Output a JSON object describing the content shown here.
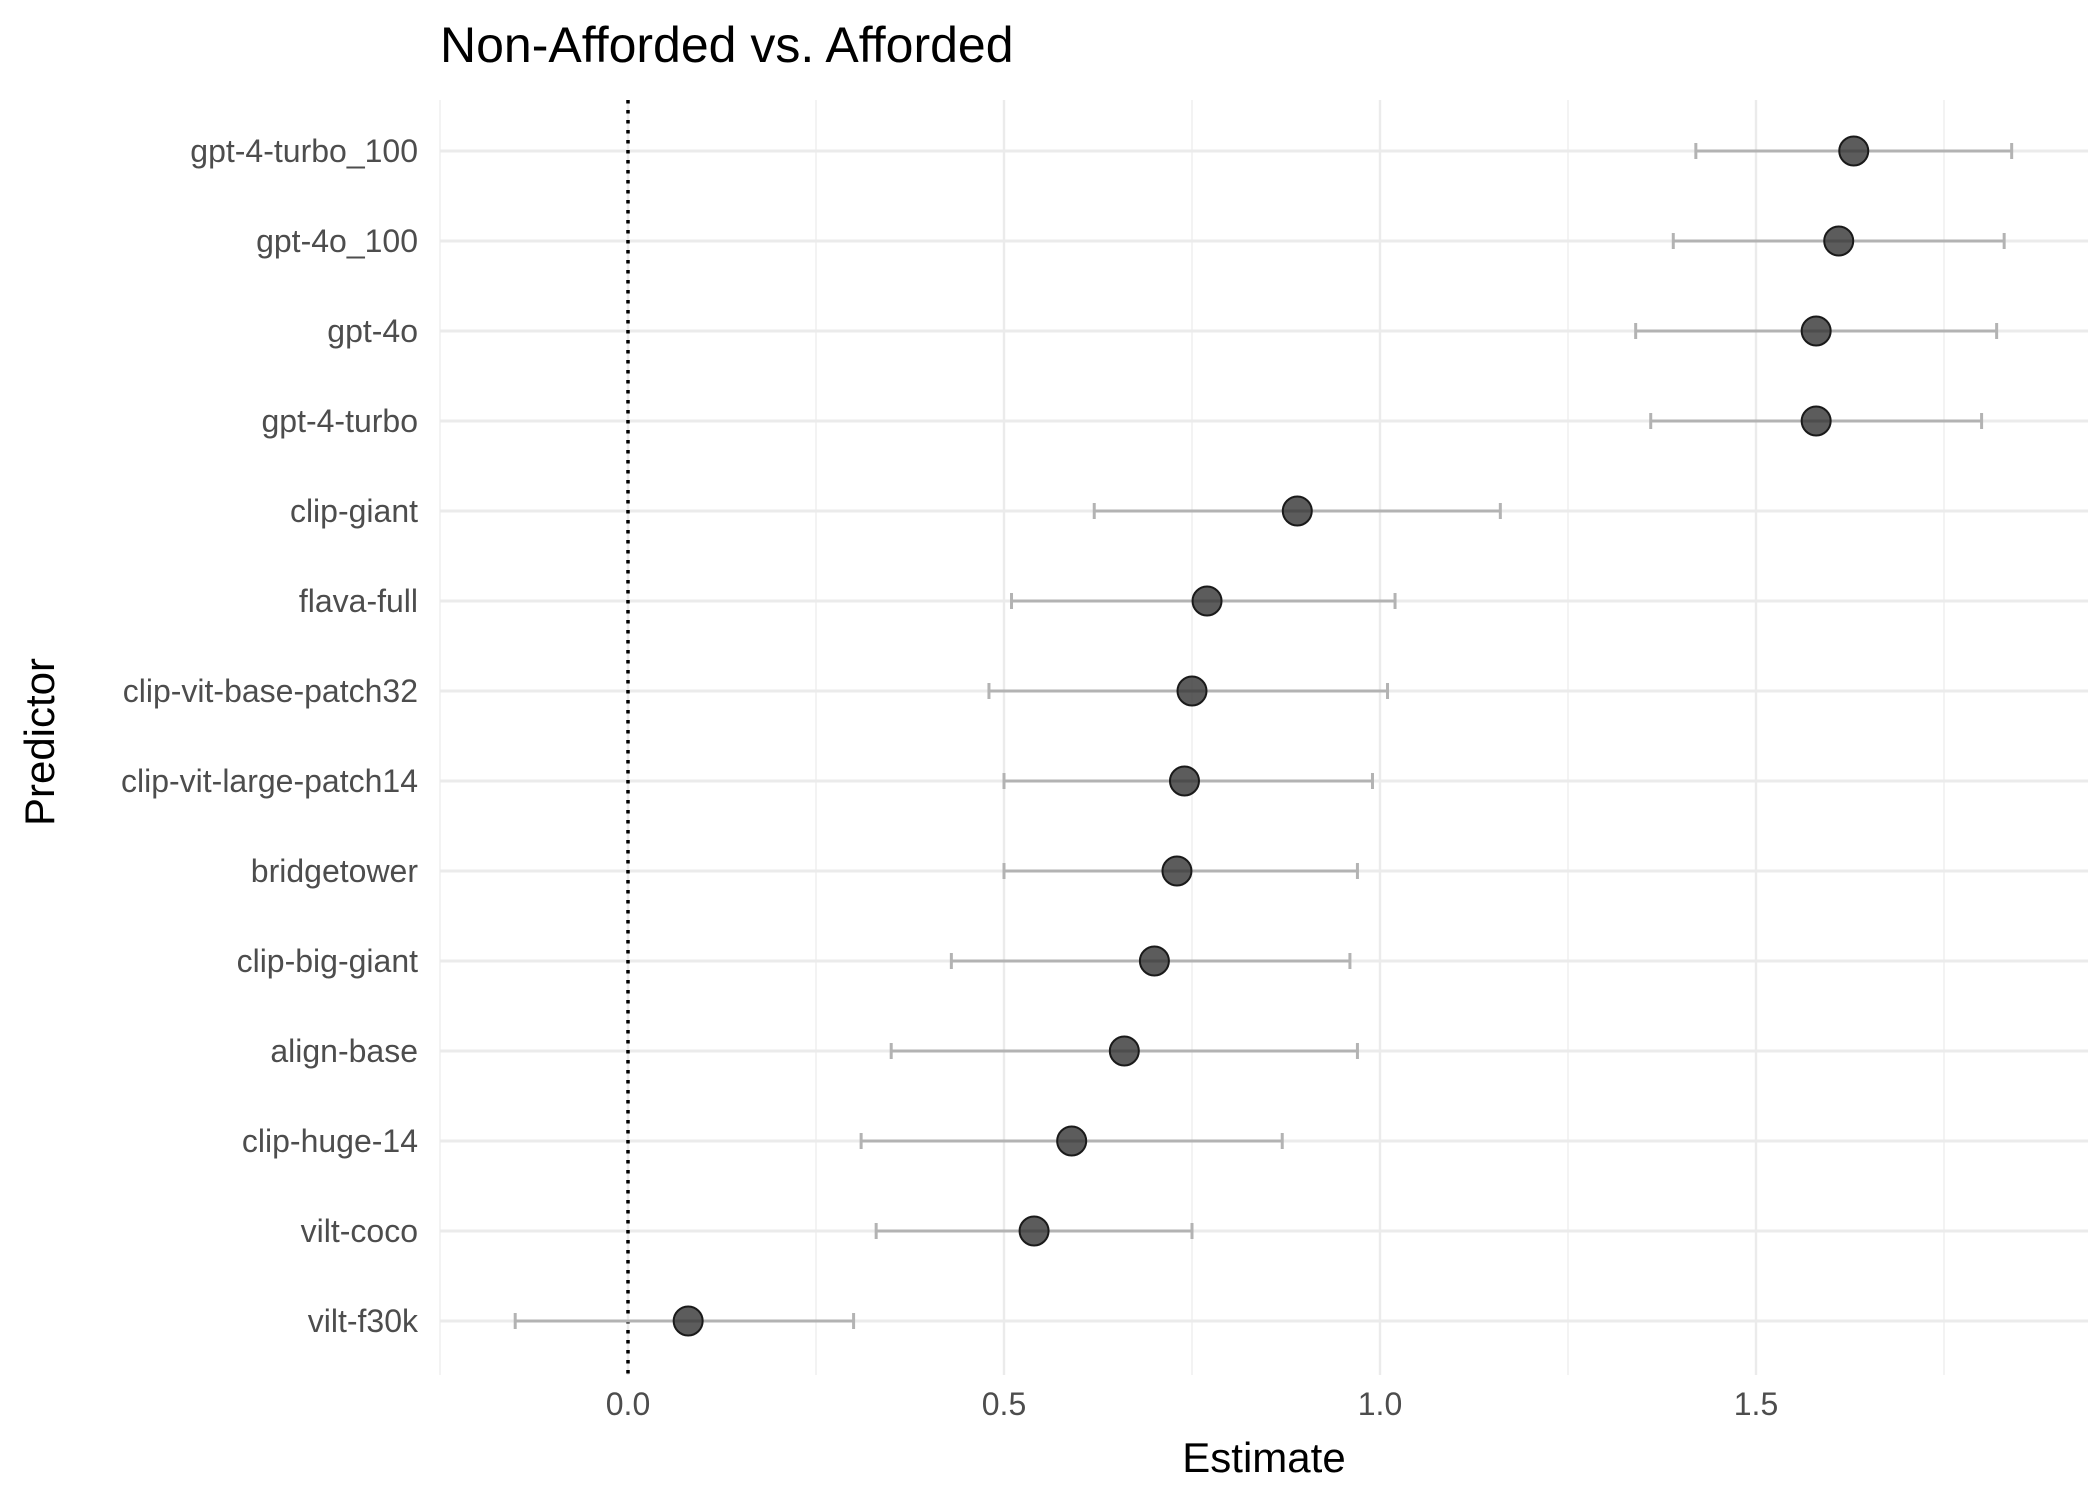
{
  "chart_data": {
    "type": "scatter",
    "title": "Non-Afforded vs. Afforded",
    "xlabel": "Estimate",
    "ylabel": "Predictor",
    "xlim": [
      -0.25,
      1.93
    ],
    "x_ticks": [
      0.0,
      0.5,
      1.0,
      1.5
    ],
    "x_tick_labels": [
      "0.0",
      "0.5",
      "1.0",
      "1.5"
    ],
    "reference_line": {
      "x": 0,
      "style": "dotted"
    },
    "grid": true,
    "legend": "none",
    "point_color": "#333333",
    "errorbar_color": "#b3b3b3",
    "points": [
      {
        "label": "gpt-4-turbo_100",
        "estimate": 1.63,
        "lower": 1.42,
        "upper": 1.84
      },
      {
        "label": "gpt-4o_100",
        "estimate": 1.61,
        "lower": 1.39,
        "upper": 1.83
      },
      {
        "label": "gpt-4o",
        "estimate": 1.58,
        "lower": 1.34,
        "upper": 1.82
      },
      {
        "label": "gpt-4-turbo",
        "estimate": 1.58,
        "lower": 1.36,
        "upper": 1.8
      },
      {
        "label": "clip-giant",
        "estimate": 0.89,
        "lower": 0.62,
        "upper": 1.16
      },
      {
        "label": "flava-full",
        "estimate": 0.77,
        "lower": 0.51,
        "upper": 1.02
      },
      {
        "label": "clip-vit-base-patch32",
        "estimate": 0.75,
        "lower": 0.48,
        "upper": 1.01
      },
      {
        "label": "clip-vit-large-patch14",
        "estimate": 0.74,
        "lower": 0.5,
        "upper": 0.99
      },
      {
        "label": "bridgetower",
        "estimate": 0.73,
        "lower": 0.5,
        "upper": 0.97
      },
      {
        "label": "clip-big-giant",
        "estimate": 0.7,
        "lower": 0.43,
        "upper": 0.96
      },
      {
        "label": "align-base",
        "estimate": 0.66,
        "lower": 0.35,
        "upper": 0.97
      },
      {
        "label": "clip-huge-14",
        "estimate": 0.59,
        "lower": 0.31,
        "upper": 0.87
      },
      {
        "label": "vilt-coco",
        "estimate": 0.54,
        "lower": 0.33,
        "upper": 0.75
      },
      {
        "label": "vilt-f30k",
        "estimate": 0.08,
        "lower": -0.15,
        "upper": 0.3
      }
    ]
  }
}
